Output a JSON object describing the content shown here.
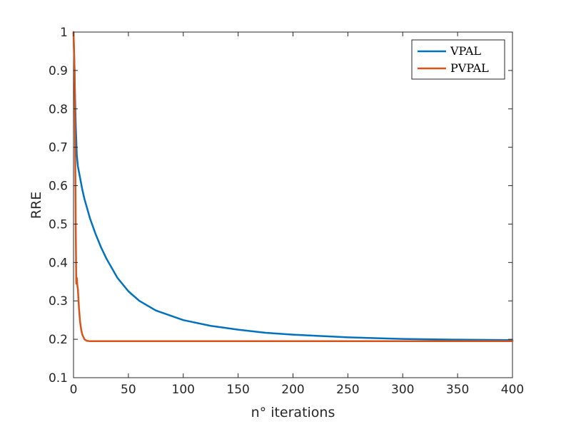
{
  "chart_data": {
    "type": "line",
    "title": "",
    "xlabel": "n° iterations",
    "ylabel": "RRE",
    "xlim": [
      0,
      400
    ],
    "ylim": [
      0.1,
      1
    ],
    "xticks": [
      0,
      50,
      100,
      150,
      200,
      250,
      300,
      350,
      400
    ],
    "yticks": [
      0.1,
      0.2,
      0.3,
      0.4,
      0.5,
      0.6,
      0.7,
      0.8,
      0.9,
      1
    ],
    "xtick_labels": [
      "0",
      "50",
      "100",
      "150",
      "200",
      "250",
      "300",
      "350",
      "400"
    ],
    "ytick_labels": [
      "0.1",
      "0.2",
      "0.3",
      "0.4",
      "0.5",
      "0.6",
      "0.7",
      "0.8",
      "0.9",
      "1"
    ],
    "grid": false,
    "legend_position": "top-right",
    "series": [
      {
        "name": "VPAL",
        "color": "#0072bd",
        "x": [
          0,
          1,
          2,
          3,
          4,
          6,
          8,
          10,
          15,
          20,
          25,
          30,
          40,
          50,
          60,
          75,
          100,
          125,
          150,
          175,
          200,
          250,
          300,
          350,
          400
        ],
        "y": [
          1.0,
          0.88,
          0.76,
          0.68,
          0.65,
          0.62,
          0.59,
          0.565,
          0.515,
          0.475,
          0.44,
          0.41,
          0.36,
          0.325,
          0.3,
          0.275,
          0.25,
          0.235,
          0.225,
          0.217,
          0.212,
          0.205,
          0.201,
          0.199,
          0.198
        ]
      },
      {
        "name": "PVPAL",
        "color": "#d95319",
        "x": [
          0,
          1,
          2,
          2.5,
          3,
          3.5,
          4,
          5,
          6,
          7,
          8,
          10,
          12,
          15,
          20,
          30,
          50,
          100,
          200,
          300,
          400
        ],
        "y": [
          1.0,
          0.9,
          0.5,
          0.345,
          0.36,
          0.34,
          0.33,
          0.28,
          0.245,
          0.225,
          0.212,
          0.2,
          0.196,
          0.195,
          0.195,
          0.195,
          0.195,
          0.195,
          0.195,
          0.195,
          0.195
        ]
      }
    ]
  }
}
